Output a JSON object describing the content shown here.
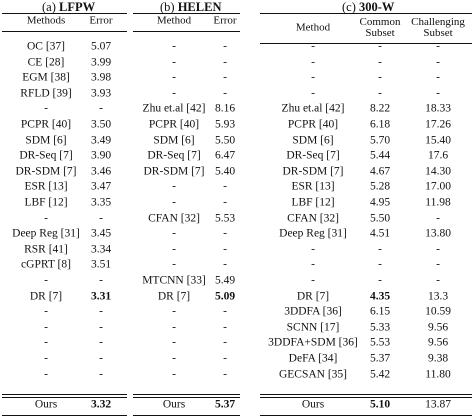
{
  "panels": [
    {
      "caption_prefix": "(a)",
      "caption_name": "LFPW",
      "headers": [
        "Methods",
        "Error"
      ],
      "rows": [
        [
          "OC [37]",
          "5.07"
        ],
        [
          "CE [28]",
          "3.99"
        ],
        [
          "EGM [38]",
          "3.98"
        ],
        [
          "RFLD [39]",
          "3.93"
        ],
        [
          "-",
          "-"
        ],
        [
          "PCPR [40]",
          "3.50"
        ],
        [
          "SDM [6]",
          "3.49"
        ],
        [
          "DR-Seq [7]",
          "3.90"
        ],
        [
          "DR-SDM [7]",
          "3.46"
        ],
        [
          "ESR [13]",
          "3.47"
        ],
        [
          "LBF [12]",
          "3.35"
        ],
        [
          "-",
          "-"
        ],
        [
          "Deep Reg [31]",
          "3.45"
        ],
        [
          "RSR [41]",
          "3.34"
        ],
        [
          "cGPRT [8]",
          "3.51"
        ],
        [
          "-",
          "-"
        ],
        [
          "DR [7]",
          "3.31"
        ],
        [
          "-",
          "-"
        ],
        [
          "-",
          "-"
        ],
        [
          "-",
          "-"
        ],
        [
          "-",
          "-"
        ],
        [
          "-",
          "-"
        ]
      ],
      "ours": [
        "Ours",
        "3.32"
      ]
    },
    {
      "caption_prefix": "(b)",
      "caption_name": "HELEN",
      "headers": [
        "Method",
        "Error"
      ],
      "rows": [
        [
          "-",
          "-"
        ],
        [
          "-",
          "-"
        ],
        [
          "-",
          "-"
        ],
        [
          "-",
          "-"
        ],
        [
          "Zhu et.al [42]",
          "8.16"
        ],
        [
          "PCPR [40]",
          "5.93"
        ],
        [
          "SDM [6]",
          "5.50"
        ],
        [
          "DR-Seq [7]",
          "6.47"
        ],
        [
          "DR-SDM [7]",
          "5.40"
        ],
        [
          "-",
          "-"
        ],
        [
          "-",
          "-"
        ],
        [
          "CFAN [32]",
          "5.53"
        ],
        [
          "-",
          "-"
        ],
        [
          "-",
          "-"
        ],
        [
          "-",
          "-"
        ],
        [
          "MTCNN [33]",
          "5.49"
        ],
        [
          "DR [7]",
          "5.09"
        ],
        [
          "-",
          "-"
        ],
        [
          "-",
          "-"
        ],
        [
          "-",
          "-"
        ],
        [
          "-",
          "-"
        ],
        [
          "-",
          "-"
        ]
      ],
      "ours": [
        "Ours",
        "5.37"
      ]
    },
    {
      "caption_prefix": "(c)",
      "caption_name": "300-W",
      "headers": [
        "Method",
        "Common\nSubset",
        "Challenging\nSubset"
      ],
      "rows": [
        [
          "-",
          "-",
          "-"
        ],
        [
          "-",
          "-",
          "-"
        ],
        [
          "-",
          "-",
          "-"
        ],
        [
          "-",
          "-",
          "-"
        ],
        [
          "Zhu et.al [42]",
          "8.22",
          "18.33"
        ],
        [
          "PCPR [40]",
          "6.18",
          "17.26"
        ],
        [
          "SDM [6]",
          "5.70",
          "15.40"
        ],
        [
          "DR-Seq [7]",
          "5.44",
          "17.6"
        ],
        [
          "DR-SDM [7]",
          "4.67",
          "14.30"
        ],
        [
          "ESR [13]",
          "5.28",
          "17.00"
        ],
        [
          "LBF [12]",
          "4.95",
          "11.98"
        ],
        [
          "CFAN [32]",
          "5.50",
          "-"
        ],
        [
          "Deep Reg [31]",
          "4.51",
          "13.80"
        ],
        [
          "-",
          "-",
          "-"
        ],
        [
          "-",
          "-",
          "-"
        ],
        [
          "-",
          "-",
          "-"
        ],
        [
          "DR [7]",
          "4.35",
          "13.3"
        ],
        [
          "3DDFA [36]",
          "6.15",
          "10.59"
        ],
        [
          "SCNN [17]",
          "5.33",
          "9.56"
        ],
        [
          "3DDFA+SDM [36]",
          "5.53",
          "9.56"
        ],
        [
          "DeFA [34]",
          "5.37",
          "9.38"
        ],
        [
          "GECSAN [35]",
          "5.42",
          "11.80"
        ]
      ],
      "ours": [
        "Ours",
        "5.10",
        "13.87"
      ]
    }
  ],
  "bold_cells": [
    {
      "panel": 0,
      "row": 16,
      "col": 1
    },
    {
      "panel": 0,
      "row": "ours",
      "col": 1
    },
    {
      "panel": 1,
      "row": 16,
      "col": 1
    },
    {
      "panel": 1,
      "row": "ours",
      "col": 1
    },
    {
      "panel": 2,
      "row": 16,
      "col": 1
    },
    {
      "panel": 2,
      "row": "ours",
      "col": 1
    }
  ]
}
